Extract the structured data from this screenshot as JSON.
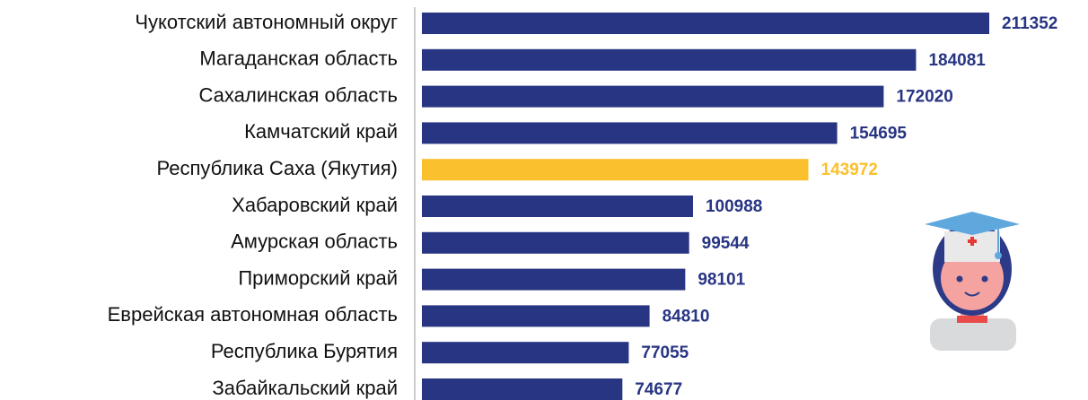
{
  "chart_data": {
    "type": "barh",
    "categories": [
      "Чукотский автономный округ",
      "Магаданская область",
      "Сахалинская область",
      "Камчатский край",
      "Республика Саха (Якутия)",
      "Хабаровский край",
      "Амурская область",
      "Приморский край",
      "Еврейская автономная область",
      "Республика Бурятия",
      "Забайкальский край"
    ],
    "values": [
      211352,
      184081,
      172020,
      154695,
      143972,
      100988,
      99544,
      98101,
      84810,
      77055,
      74677
    ],
    "colors": [
      "#283583",
      "#283583",
      "#283583",
      "#283583",
      "#fbc02d",
      "#283583",
      "#283583",
      "#283583",
      "#283583",
      "#283583",
      "#283583"
    ]
  }
}
